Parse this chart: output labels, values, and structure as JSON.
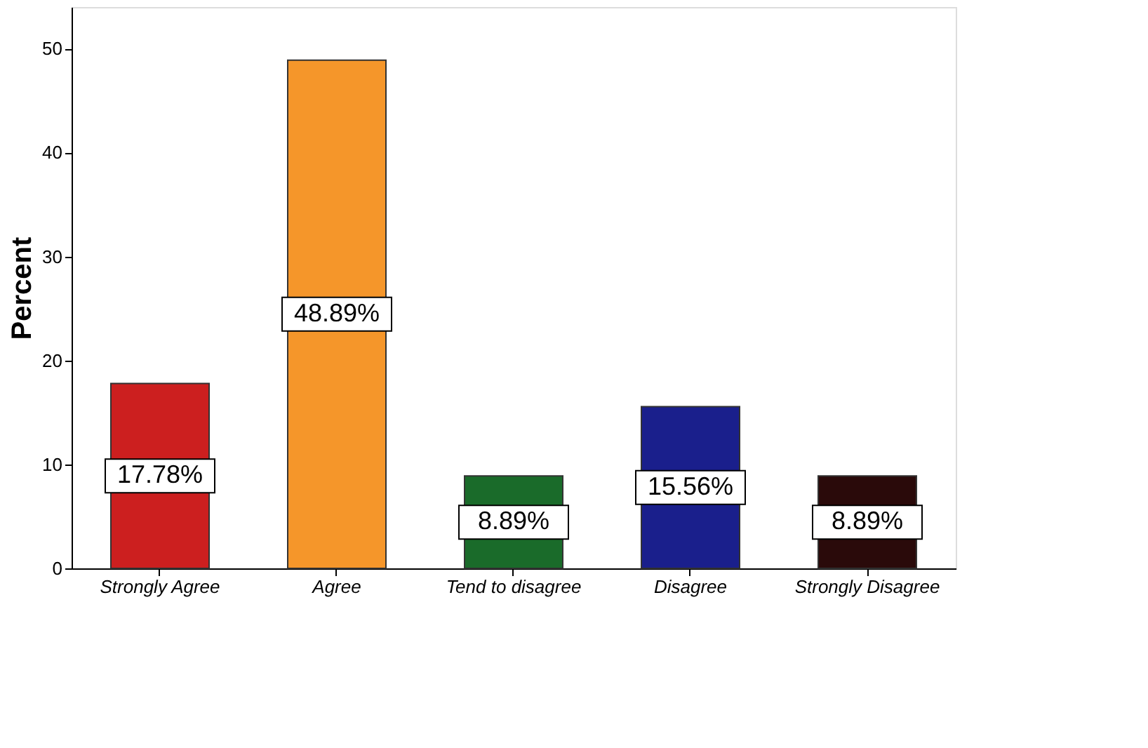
{
  "chart_data": {
    "type": "bar",
    "ylabel": "Percent",
    "categories": [
      "Strongly Agree",
      "Agree",
      "Tend to disagree",
      "Disagree",
      "Strongly Disagree"
    ],
    "values": [
      17.78,
      48.89,
      8.89,
      15.56,
      8.89
    ],
    "colors": [
      "#cc1f1f",
      "#f5962a",
      "#1a6b2a",
      "#1a1f8c",
      "#2a0a0a"
    ],
    "value_labels": [
      "17.78%",
      "48.89%",
      "8.89%",
      "15.56%",
      "8.89%"
    ],
    "ylim": [
      0,
      54
    ],
    "yticks": [
      0,
      10,
      20,
      30,
      40,
      50
    ],
    "grid": false
  }
}
